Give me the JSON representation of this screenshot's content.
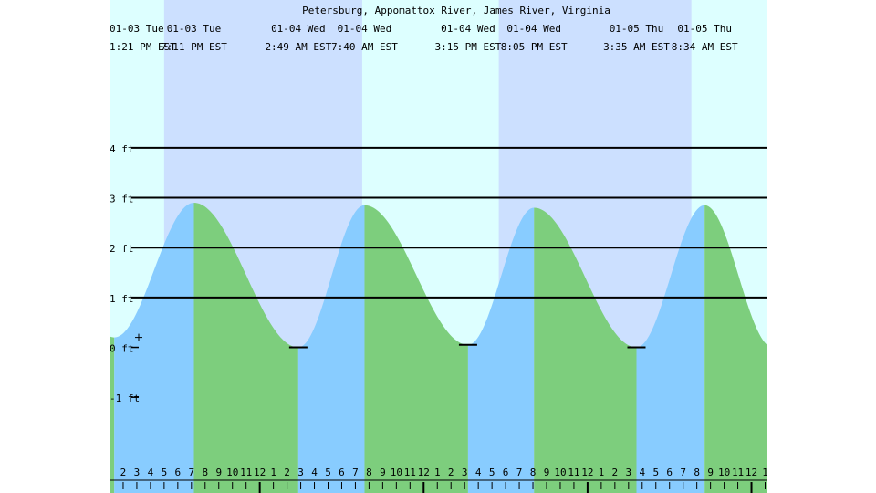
{
  "chart_data": {
    "type": "area",
    "title": "Petersburg, Appomattox River, James River, Virginia",
    "y_unit": "ft",
    "ylim": [
      -1.6,
      5.9
    ],
    "yticks": [
      {
        "value": 4,
        "label": "4 ft"
      },
      {
        "value": 3,
        "label": "3 ft"
      },
      {
        "value": 2,
        "label": "2 ft"
      },
      {
        "value": 1,
        "label": "1 ft"
      },
      {
        "value": 0,
        "label": "0 ft"
      },
      {
        "value": -1,
        "label": "-1 ft"
      }
    ],
    "x_unit": "hour of day",
    "xlim": [
      13.0,
      61.1
    ],
    "hour_labels": [
      "2",
      "3",
      "4",
      "5",
      "6",
      "7",
      "8",
      "9",
      "10",
      "11",
      "12",
      "1",
      "2",
      "3",
      "4",
      "5",
      "6",
      "7",
      "8",
      "9",
      "10",
      "11",
      "12",
      "1",
      "2",
      "3",
      "4",
      "5",
      "6",
      "7",
      "8",
      "9",
      "10",
      "11",
      "12",
      "1",
      "2",
      "3",
      "4",
      "5",
      "6",
      "7",
      "8",
      "9",
      "10",
      "11",
      "12",
      "1"
    ],
    "night_bands": [
      {
        "start": 17.0,
        "end": 31.5
      },
      {
        "start": 41.5,
        "end": 55.6
      }
    ],
    "tide_events": [
      {
        "date": "01-03 Tue",
        "time": "1:21 PM EST",
        "hour": 13.35,
        "height": 0.2,
        "type": "low"
      },
      {
        "date": "01-03 Tue",
        "time": "7:11 PM EST",
        "hour": 19.18,
        "height": 2.9,
        "type": "high"
      },
      {
        "date": "01-04 Wed",
        "time": "2:49 AM EST",
        "hour": 26.82,
        "height": 0.0,
        "type": "low"
      },
      {
        "date": "01-04 Wed",
        "time": "7:40 AM EST",
        "hour": 31.67,
        "height": 2.85,
        "type": "high"
      },
      {
        "date": "01-04 Wed",
        "time": "3:15 PM EST",
        "hour": 39.25,
        "height": 0.05,
        "type": "low"
      },
      {
        "date": "01-04 Wed",
        "time": "8:05 PM EST",
        "hour": 44.08,
        "height": 2.8,
        "type": "high"
      },
      {
        "date": "01-05 Thu",
        "time": "3:35 AM EST",
        "hour": 51.58,
        "height": 0.0,
        "type": "low"
      },
      {
        "date": "01-05 Thu",
        "time": "8:34 AM EST",
        "hour": 56.57,
        "height": 2.85,
        "type": "high"
      }
    ],
    "colors": {
      "day": "#ddffff",
      "night": "#cce0ff",
      "rising": "#88ccff",
      "falling": "#7dce7d",
      "grid": "#000000"
    }
  }
}
